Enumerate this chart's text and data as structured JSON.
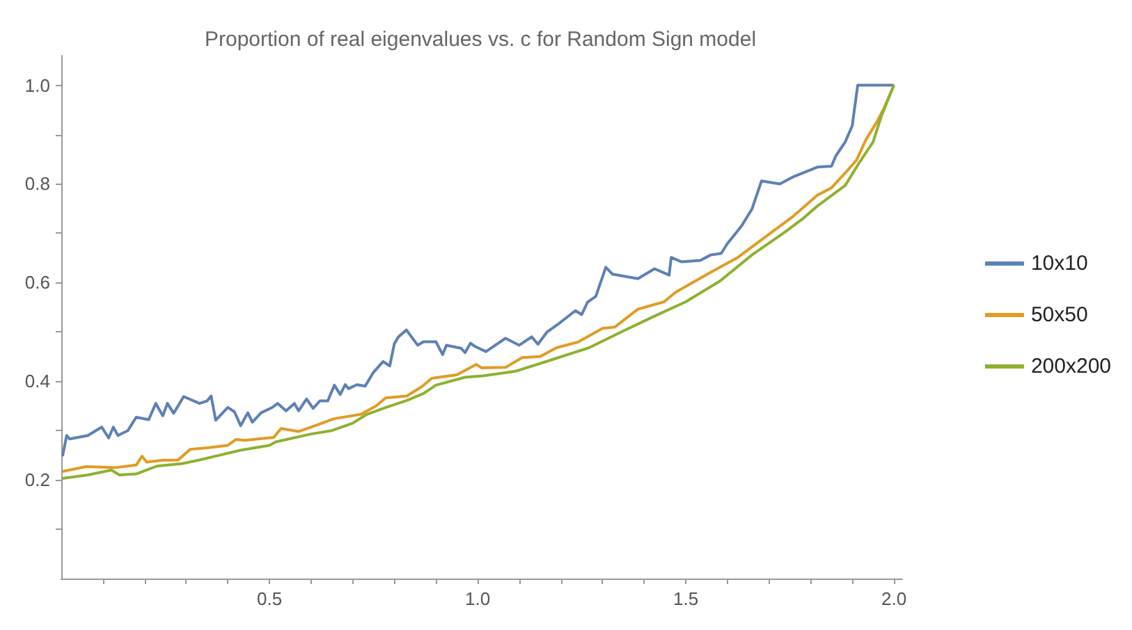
{
  "chart_data": {
    "type": "line",
    "title": "Proportion of real eigenvalues vs. c for Random Sign model",
    "xlim": [
      0,
      2.02
    ],
    "ylim": [
      0,
      1.06
    ],
    "xticks": [
      {
        "value": 0.1,
        "label": null
      },
      {
        "value": 0.2,
        "label": null
      },
      {
        "value": 0.3,
        "label": null
      },
      {
        "value": 0.4,
        "label": null
      },
      0.5,
      {
        "value": 0.6,
        "label": null
      },
      {
        "value": 0.7,
        "label": null
      },
      {
        "value": 0.8,
        "label": null
      },
      {
        "value": 0.9,
        "label": null
      },
      {
        "value": 1,
        "label": "1.0"
      },
      {
        "value": 1.1,
        "label": null
      },
      {
        "value": 1.2,
        "label": null
      },
      {
        "value": 1.3,
        "label": null
      },
      {
        "value": 1.4,
        "label": null
      },
      1.5,
      {
        "value": 1.6,
        "label": null
      },
      {
        "value": 1.7,
        "label": null
      },
      {
        "value": 1.8,
        "label": null
      },
      {
        "value": 1.9,
        "label": null
      },
      {
        "value": 2,
        "label": "2.0"
      }
    ],
    "yticks": [
      {
        "value": 0.1,
        "label": null
      },
      0.2,
      {
        "value": 0.3,
        "label": null
      },
      0.4,
      {
        "value": 0.5,
        "label": null
      },
      0.6,
      {
        "value": 0.7,
        "label": null
      },
      0.8,
      {
        "value": 0.9,
        "label": null
      },
      {
        "value": 1,
        "label": "1.0"
      }
    ],
    "grid": false,
    "legend": "right",
    "series": [
      {
        "name": "10x10",
        "color": "#5e81b5",
        "x": [
          0.003,
          0.013,
          0.02,
          0.064,
          0.097,
          0.114,
          0.125,
          0.136,
          0.16,
          0.18,
          0.21,
          0.227,
          0.244,
          0.255,
          0.27,
          0.294,
          0.332,
          0.35,
          0.36,
          0.371,
          0.4,
          0.416,
          0.431,
          0.448,
          0.459,
          0.48,
          0.505,
          0.52,
          0.54,
          0.56,
          0.57,
          0.589,
          0.605,
          0.621,
          0.64,
          0.656,
          0.67,
          0.682,
          0.69,
          0.71,
          0.73,
          0.749,
          0.773,
          0.789,
          0.8,
          0.81,
          0.829,
          0.856,
          0.87,
          0.9,
          0.916,
          0.925,
          0.96,
          0.97,
          0.983,
          0.995,
          1.02,
          1.067,
          1.1,
          1.13,
          1.145,
          1.167,
          1.197,
          1.235,
          1.25,
          1.264,
          1.284,
          1.308,
          1.324,
          1.385,
          1.425,
          1.46,
          1.465,
          1.49,
          1.535,
          1.56,
          1.585,
          1.6,
          1.62,
          1.635,
          1.659,
          1.682,
          1.726,
          1.76,
          1.79,
          1.816,
          1.85,
          1.86,
          1.883,
          1.9,
          1.903,
          1.913,
          2.0
        ],
        "values": [
          0.248,
          0.29,
          0.283,
          0.29,
          0.307,
          0.285,
          0.307,
          0.29,
          0.3,
          0.327,
          0.322,
          0.355,
          0.33,
          0.355,
          0.335,
          0.369,
          0.355,
          0.36,
          0.37,
          0.321,
          0.347,
          0.338,
          0.31,
          0.336,
          0.317,
          0.336,
          0.346,
          0.355,
          0.34,
          0.355,
          0.34,
          0.364,
          0.345,
          0.36,
          0.36,
          0.392,
          0.373,
          0.393,
          0.385,
          0.393,
          0.39,
          0.417,
          0.44,
          0.431,
          0.476,
          0.49,
          0.504,
          0.473,
          0.48,
          0.48,
          0.454,
          0.473,
          0.467,
          0.458,
          0.477,
          0.47,
          0.46,
          0.487,
          0.473,
          0.49,
          0.475,
          0.5,
          0.518,
          0.543,
          0.535,
          0.56,
          0.572,
          0.631,
          0.617,
          0.608,
          0.628,
          0.615,
          0.651,
          0.642,
          0.645,
          0.656,
          0.659,
          0.679,
          0.7,
          0.716,
          0.749,
          0.806,
          0.8,
          0.815,
          0.825,
          0.834,
          0.836,
          0.856,
          0.885,
          0.918,
          0.938,
          1.0,
          1.0
        ]
      },
      {
        "name": "50x50",
        "color": "#e19c24",
        "x": [
          0.003,
          0.06,
          0.13,
          0.18,
          0.194,
          0.205,
          0.246,
          0.28,
          0.31,
          0.35,
          0.4,
          0.42,
          0.44,
          0.51,
          0.528,
          0.57,
          0.61,
          0.655,
          0.72,
          0.756,
          0.779,
          0.83,
          0.866,
          0.89,
          0.95,
          0.997,
          1.01,
          1.067,
          1.107,
          1.15,
          1.19,
          1.24,
          1.3,
          1.33,
          1.385,
          1.448,
          1.475,
          1.552,
          1.625,
          1.692,
          1.759,
          1.816,
          1.85,
          1.886,
          1.91,
          1.933,
          1.96,
          1.977,
          2.0
        ],
        "values": [
          0.217,
          0.227,
          0.225,
          0.23,
          0.248,
          0.236,
          0.24,
          0.24,
          0.262,
          0.265,
          0.27,
          0.282,
          0.28,
          0.286,
          0.304,
          0.298,
          0.31,
          0.324,
          0.333,
          0.35,
          0.366,
          0.37,
          0.389,
          0.406,
          0.413,
          0.434,
          0.427,
          0.428,
          0.448,
          0.45,
          0.468,
          0.479,
          0.507,
          0.51,
          0.546,
          0.561,
          0.58,
          0.617,
          0.651,
          0.693,
          0.735,
          0.777,
          0.792,
          0.825,
          0.848,
          0.89,
          0.927,
          0.955,
          1.0
        ]
      },
      {
        "name": "200x200",
        "color": "#8fb131",
        "x": [
          0.003,
          0.064,
          0.12,
          0.14,
          0.18,
          0.23,
          0.29,
          0.33,
          0.38,
          0.43,
          0.5,
          0.515,
          0.6,
          0.65,
          0.7,
          0.732,
          0.78,
          0.83,
          0.87,
          0.9,
          0.97,
          1.013,
          1.09,
          1.18,
          1.268,
          1.348,
          1.425,
          1.5,
          1.582,
          1.659,
          1.736,
          1.782,
          1.816,
          1.883,
          1.916,
          1.95,
          1.97,
          2.0
        ],
        "values": [
          0.203,
          0.21,
          0.22,
          0.21,
          0.212,
          0.228,
          0.233,
          0.24,
          0.25,
          0.26,
          0.27,
          0.277,
          0.293,
          0.3,
          0.315,
          0.332,
          0.347,
          0.361,
          0.375,
          0.392,
          0.408,
          0.411,
          0.42,
          0.444,
          0.468,
          0.501,
          0.532,
          0.561,
          0.603,
          0.656,
          0.701,
          0.73,
          0.755,
          0.797,
          0.842,
          0.885,
          0.938,
          1.0
        ]
      }
    ]
  }
}
